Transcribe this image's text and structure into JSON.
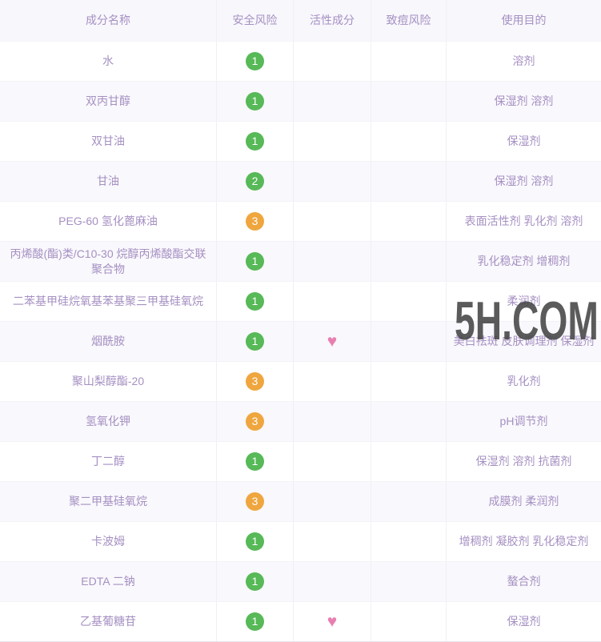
{
  "table": {
    "columns": [
      {
        "key": "name",
        "label": "成分名称"
      },
      {
        "key": "safety",
        "label": "安全风险"
      },
      {
        "key": "active",
        "label": "活性成分"
      },
      {
        "key": "acne",
        "label": "致痘风险"
      },
      {
        "key": "purpose",
        "label": "使用目的"
      }
    ],
    "rows": [
      {
        "name": "水",
        "safety": "1",
        "safety_color": "green",
        "active_heart": false,
        "acne": "",
        "purpose": "溶剂"
      },
      {
        "name": "双丙甘醇",
        "safety": "1",
        "safety_color": "green",
        "active_heart": false,
        "acne": "",
        "purpose": "保湿剂 溶剂"
      },
      {
        "name": "双甘油",
        "safety": "1",
        "safety_color": "green",
        "active_heart": false,
        "acne": "",
        "purpose": "保湿剂"
      },
      {
        "name": "甘油",
        "safety": "2",
        "safety_color": "green",
        "active_heart": false,
        "acne": "",
        "purpose": "保湿剂 溶剂"
      },
      {
        "name": "PEG-60 氢化蓖麻油",
        "safety": "3",
        "safety_color": "orange",
        "active_heart": false,
        "acne": "",
        "purpose": "表面活性剂 乳化剂 溶剂"
      },
      {
        "name": "丙烯酸(酯)类/C10-30 烷醇丙烯酸酯交联聚合物",
        "safety": "1",
        "safety_color": "green",
        "active_heart": false,
        "acne": "",
        "purpose": "乳化稳定剂 增稠剂"
      },
      {
        "name": "二苯基甲硅烷氧基苯基聚三甲基硅氧烷",
        "safety": "1",
        "safety_color": "green",
        "active_heart": false,
        "acne": "",
        "purpose": "柔润剂"
      },
      {
        "name": "烟酰胺",
        "safety": "1",
        "safety_color": "green",
        "active_heart": true,
        "acne": "",
        "purpose": "美白祛斑 皮肤调理剂 保湿剂"
      },
      {
        "name": "聚山梨醇酯-20",
        "safety": "3",
        "safety_color": "orange",
        "active_heart": false,
        "acne": "",
        "purpose": "乳化剂"
      },
      {
        "name": "氢氧化钾",
        "safety": "3",
        "safety_color": "orange",
        "active_heart": false,
        "acne": "",
        "purpose": "pH调节剂"
      },
      {
        "name": "丁二醇",
        "safety": "1",
        "safety_color": "green",
        "active_heart": false,
        "acne": "",
        "purpose": "保湿剂 溶剂 抗菌剂"
      },
      {
        "name": "聚二甲基硅氧烷",
        "safety": "3",
        "safety_color": "orange",
        "active_heart": false,
        "acne": "",
        "purpose": "成膜剂 柔润剂"
      },
      {
        "name": "卡波姆",
        "safety": "1",
        "safety_color": "green",
        "active_heart": false,
        "acne": "",
        "purpose": "增稠剂 凝胶剂 乳化稳定剂"
      },
      {
        "name": "EDTA 二钠",
        "safety": "1",
        "safety_color": "green",
        "active_heart": false,
        "acne": "",
        "purpose": "螯合剂"
      },
      {
        "name": "乙基葡糖苷",
        "safety": "1",
        "safety_color": "green",
        "active_heart": true,
        "acne": "",
        "purpose": "保湿剂"
      }
    ]
  },
  "watermark": {
    "text": "5H.COM"
  },
  "icons": {
    "active_ingredient": "heart-icon"
  },
  "colors": {
    "safety_green": "#57b957",
    "safety_orange": "#efa63e",
    "heart_pink": "#e87fb0",
    "text_purple": "#a590c2",
    "watermark_gray": "#454545",
    "row_stripe": "#f9f8fc"
  }
}
